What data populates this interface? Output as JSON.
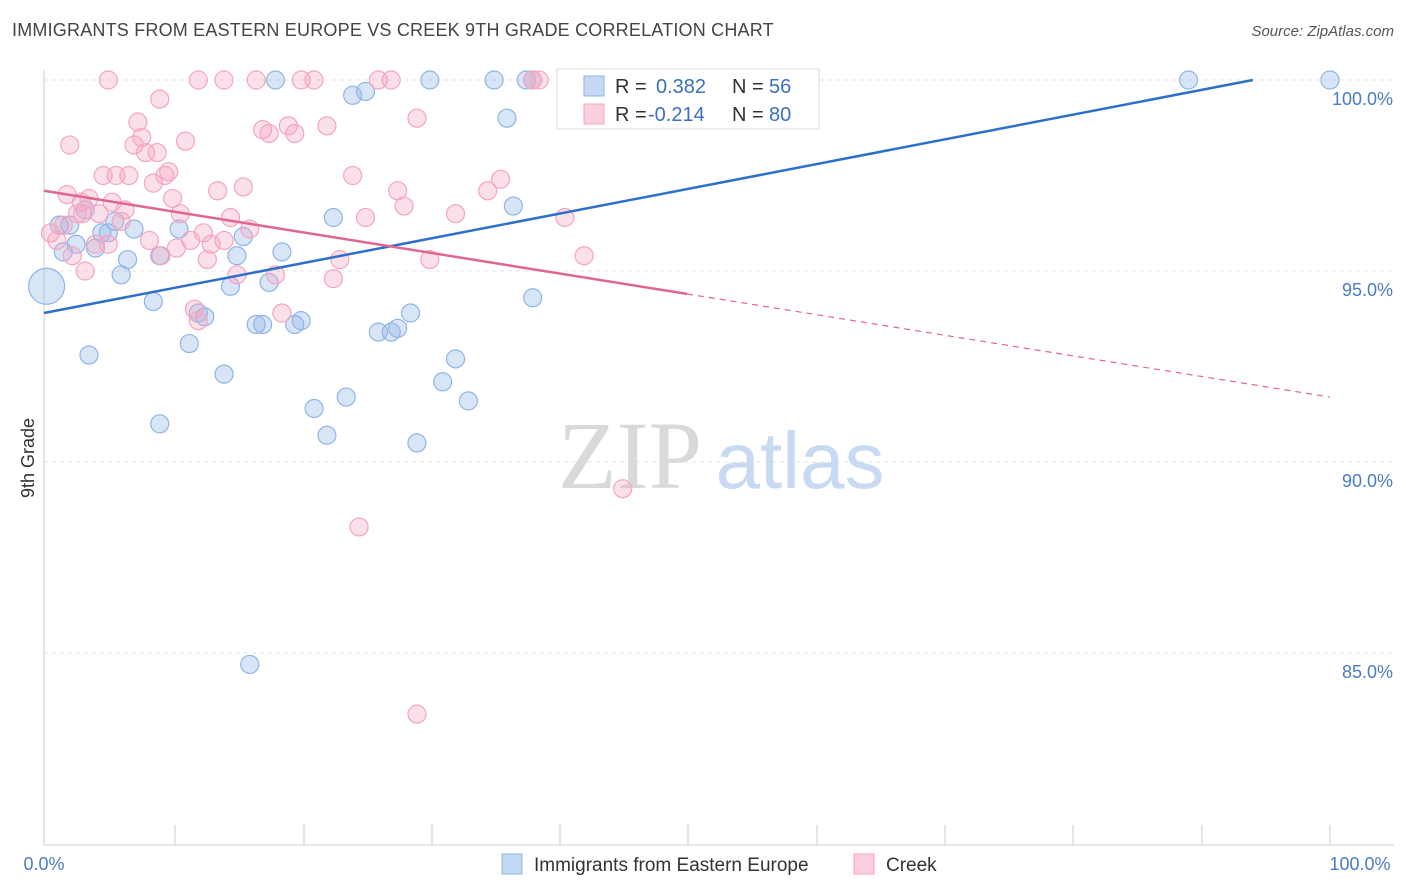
{
  "title": "IMMIGRANTS FROM EASTERN EUROPE VS CREEK 9TH GRADE CORRELATION CHART",
  "source": "Source: ZipAtlas.com",
  "watermark": {
    "zip": "ZIP",
    "atlas": "atlas"
  },
  "legend": {
    "r_label": "R =",
    "n_label": "N =",
    "rows": [
      {
        "r": "0.382",
        "n": "56"
      },
      {
        "r": "-0.214",
        "n": "80"
      }
    ]
  },
  "chart_data": {
    "type": "scatter",
    "xlabel": "",
    "ylabel": "9th Grade",
    "xlim": [
      0,
      100
    ],
    "ylim": [
      80.5,
      100.5
    ],
    "x_tick_labels": [
      "0.0%",
      "100.0%"
    ],
    "y_ticks": [
      {
        "value": 100,
        "label": "100.0%"
      },
      {
        "value": 95,
        "label": "95.0%"
      },
      {
        "value": 90,
        "label": "90.0%"
      },
      {
        "value": 85,
        "label": "85.0%"
      }
    ],
    "grid": true,
    "series": [
      {
        "name": "Immigrants from Eastern Europe",
        "color": "#8fb4e8",
        "line_color": "#2f6fcc",
        "trend": {
          "x": [
            0,
            94
          ],
          "y": [
            93.9,
            100.0
          ],
          "dashed_to": 94
        },
        "points": [
          [
            0.2,
            94.6
          ],
          [
            1.2,
            96.2
          ],
          [
            2.0,
            96.2
          ],
          [
            2.5,
            95.7
          ],
          [
            3.2,
            96.6
          ],
          [
            4.0,
            95.6
          ],
          [
            5.0,
            96.0
          ],
          [
            5.5,
            96.3
          ],
          [
            6.0,
            94.9
          ],
          [
            6.5,
            95.3
          ],
          [
            8.5,
            94.2
          ],
          [
            9.0,
            95.4
          ],
          [
            10.5,
            96.1
          ],
          [
            11.3,
            93.1
          ],
          [
            12.0,
            93.9
          ],
          [
            12.5,
            93.8
          ],
          [
            14.0,
            92.3
          ],
          [
            14.5,
            94.6
          ],
          [
            15.5,
            95.9
          ],
          [
            16.5,
            93.6
          ],
          [
            17.0,
            93.6
          ],
          [
            17.5,
            94.7
          ],
          [
            18.5,
            95.5
          ],
          [
            19.5,
            93.6
          ],
          [
            20.0,
            93.7
          ],
          [
            16.0,
            84.7
          ],
          [
            21.0,
            91.4
          ],
          [
            18.0,
            100.0
          ],
          [
            22.0,
            90.7
          ],
          [
            22.5,
            96.4
          ],
          [
            23.5,
            91.7
          ],
          [
            24.0,
            99.6
          ],
          [
            25.0,
            99.7
          ],
          [
            26.0,
            93.4
          ],
          [
            27.0,
            93.4
          ],
          [
            28.5,
            93.9
          ],
          [
            29.0,
            90.5
          ],
          [
            30.0,
            100.0
          ],
          [
            31.0,
            92.1
          ],
          [
            32.0,
            92.7
          ],
          [
            33.0,
            91.6
          ],
          [
            35.0,
            100.0
          ],
          [
            37.5,
            100.0
          ],
          [
            38.0,
            100.0
          ],
          [
            36.0,
            99.0
          ],
          [
            36.5,
            96.7
          ],
          [
            38.0,
            94.3
          ],
          [
            3.5,
            92.8
          ],
          [
            9.0,
            91.0
          ],
          [
            89.0,
            100.0
          ],
          [
            100.0,
            100.0
          ],
          [
            1.5,
            95.5
          ],
          [
            4.5,
            96.0
          ],
          [
            7.0,
            96.1
          ],
          [
            15.0,
            95.4
          ],
          [
            27.5,
            93.5
          ]
        ]
      },
      {
        "name": "Creek",
        "color": "#f4a5c0",
        "line_color": "#e0658f",
        "trend": {
          "x": [
            0,
            50,
            100
          ],
          "y": [
            97.1,
            94.4,
            91.7
          ],
          "dashed_from": 50
        },
        "points": [
          [
            0.5,
            96.0
          ],
          [
            1.0,
            95.8
          ],
          [
            1.5,
            96.2
          ],
          [
            1.8,
            97.0
          ],
          [
            2.2,
            95.4
          ],
          [
            2.6,
            96.5
          ],
          [
            2.9,
            96.8
          ],
          [
            3.2,
            95.0
          ],
          [
            3.5,
            96.9
          ],
          [
            4.0,
            95.7
          ],
          [
            4.3,
            96.5
          ],
          [
            4.6,
            97.5
          ],
          [
            5.0,
            95.7
          ],
          [
            5.3,
            96.8
          ],
          [
            5.6,
            97.5
          ],
          [
            6.0,
            96.3
          ],
          [
            6.3,
            96.6
          ],
          [
            6.6,
            97.5
          ],
          [
            7.0,
            98.3
          ],
          [
            7.3,
            98.9
          ],
          [
            7.6,
            98.5
          ],
          [
            7.9,
            98.1
          ],
          [
            8.2,
            95.8
          ],
          [
            8.5,
            97.3
          ],
          [
            8.8,
            98.1
          ],
          [
            9.1,
            95.4
          ],
          [
            9.4,
            97.5
          ],
          [
            9.7,
            97.6
          ],
          [
            10.0,
            96.9
          ],
          [
            10.3,
            95.6
          ],
          [
            10.6,
            96.5
          ],
          [
            11.0,
            98.4
          ],
          [
            11.4,
            95.8
          ],
          [
            11.7,
            94.0
          ],
          [
            12.0,
            93.7
          ],
          [
            12.4,
            96.0
          ],
          [
            12.7,
            95.3
          ],
          [
            13.0,
            95.7
          ],
          [
            13.5,
            97.1
          ],
          [
            14.0,
            95.8
          ],
          [
            14.5,
            96.4
          ],
          [
            15.0,
            94.9
          ],
          [
            15.5,
            97.2
          ],
          [
            16.0,
            96.1
          ],
          [
            16.5,
            100.0
          ],
          [
            17.0,
            98.7
          ],
          [
            17.5,
            98.6
          ],
          [
            18.0,
            94.9
          ],
          [
            18.5,
            93.9
          ],
          [
            19.0,
            98.8
          ],
          [
            19.5,
            98.6
          ],
          [
            20.0,
            100.0
          ],
          [
            21.0,
            100.0
          ],
          [
            22.0,
            98.8
          ],
          [
            23.0,
            95.3
          ],
          [
            24.0,
            97.5
          ],
          [
            25.0,
            96.4
          ],
          [
            26.0,
            100.0
          ],
          [
            27.0,
            100.0
          ],
          [
            27.5,
            97.1
          ],
          [
            28.0,
            96.7
          ],
          [
            29.0,
            99.0
          ],
          [
            30.0,
            95.3
          ],
          [
            32.0,
            96.5
          ],
          [
            34.5,
            97.1
          ],
          [
            35.5,
            97.4
          ],
          [
            38.0,
            100.0
          ],
          [
            38.5,
            100.0
          ],
          [
            40.5,
            96.4
          ],
          [
            42.0,
            95.4
          ],
          [
            45.0,
            89.3
          ],
          [
            22.5,
            94.8
          ],
          [
            24.5,
            88.3
          ],
          [
            29.0,
            83.4
          ],
          [
            9.0,
            99.5
          ],
          [
            2.0,
            98.3
          ],
          [
            3.0,
            96.5
          ],
          [
            5.0,
            100.0
          ],
          [
            12.0,
            100.0
          ],
          [
            14.0,
            100.0
          ]
        ]
      }
    ]
  },
  "bottom_legend": [
    {
      "label": "Immigrants from Eastern Europe"
    },
    {
      "label": "Creek"
    }
  ]
}
